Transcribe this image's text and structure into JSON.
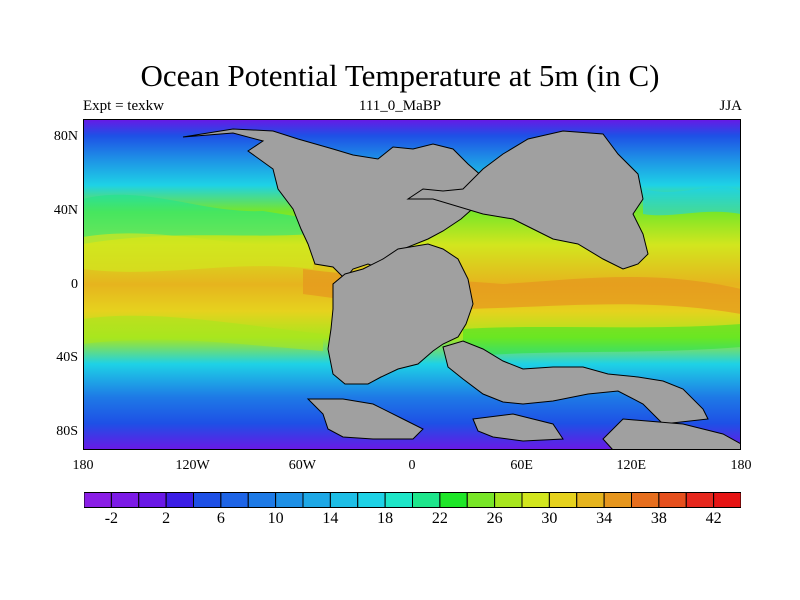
{
  "title": "Ocean Potential Temperature at 5m (in C)",
  "left_label": "Expt = texkw",
  "center_label": "111_0_MaBP",
  "right_label": "JJA",
  "lat_labels": [
    "80N",
    "40N",
    "0",
    "40S",
    "80S"
  ],
  "lat_values": [
    80,
    40,
    0,
    -40,
    -80
  ],
  "lon_labels": [
    "180",
    "120W",
    "60W",
    "0",
    "60E",
    "120E",
    "180"
  ],
  "lon_values": [
    -180,
    -120,
    -60,
    0,
    60,
    120,
    180
  ],
  "land_color": "#a0a0a0",
  "colorbar": {
    "levels": [
      -4,
      -2,
      0,
      2,
      4,
      6,
      8,
      10,
      12,
      14,
      16,
      18,
      20,
      22,
      24,
      26,
      28,
      30,
      32,
      34,
      36,
      38,
      40,
      42,
      44
    ],
    "labels": [
      "-2",
      "2",
      "6",
      "10",
      "14",
      "18",
      "22",
      "26",
      "30",
      "34",
      "38",
      "42"
    ],
    "label_values": [
      -2,
      2,
      6,
      10,
      14,
      18,
      22,
      26,
      30,
      34,
      38,
      42
    ],
    "colors": [
      "#8a1ee6",
      "#7c1ae6",
      "#6a18e6",
      "#3b1ee6",
      "#1e50e6",
      "#1e64e6",
      "#1e7ae6",
      "#1e90e6",
      "#1ea8e6",
      "#1ebee6",
      "#1ed2e6",
      "#1ee6c8",
      "#1ee68c",
      "#1ee628",
      "#78e628",
      "#a8e61e",
      "#d2e61e",
      "#e6d21e",
      "#e6b41e",
      "#e6961e",
      "#e66e1e",
      "#e6501e",
      "#e6281e",
      "#e61414"
    ]
  }
}
